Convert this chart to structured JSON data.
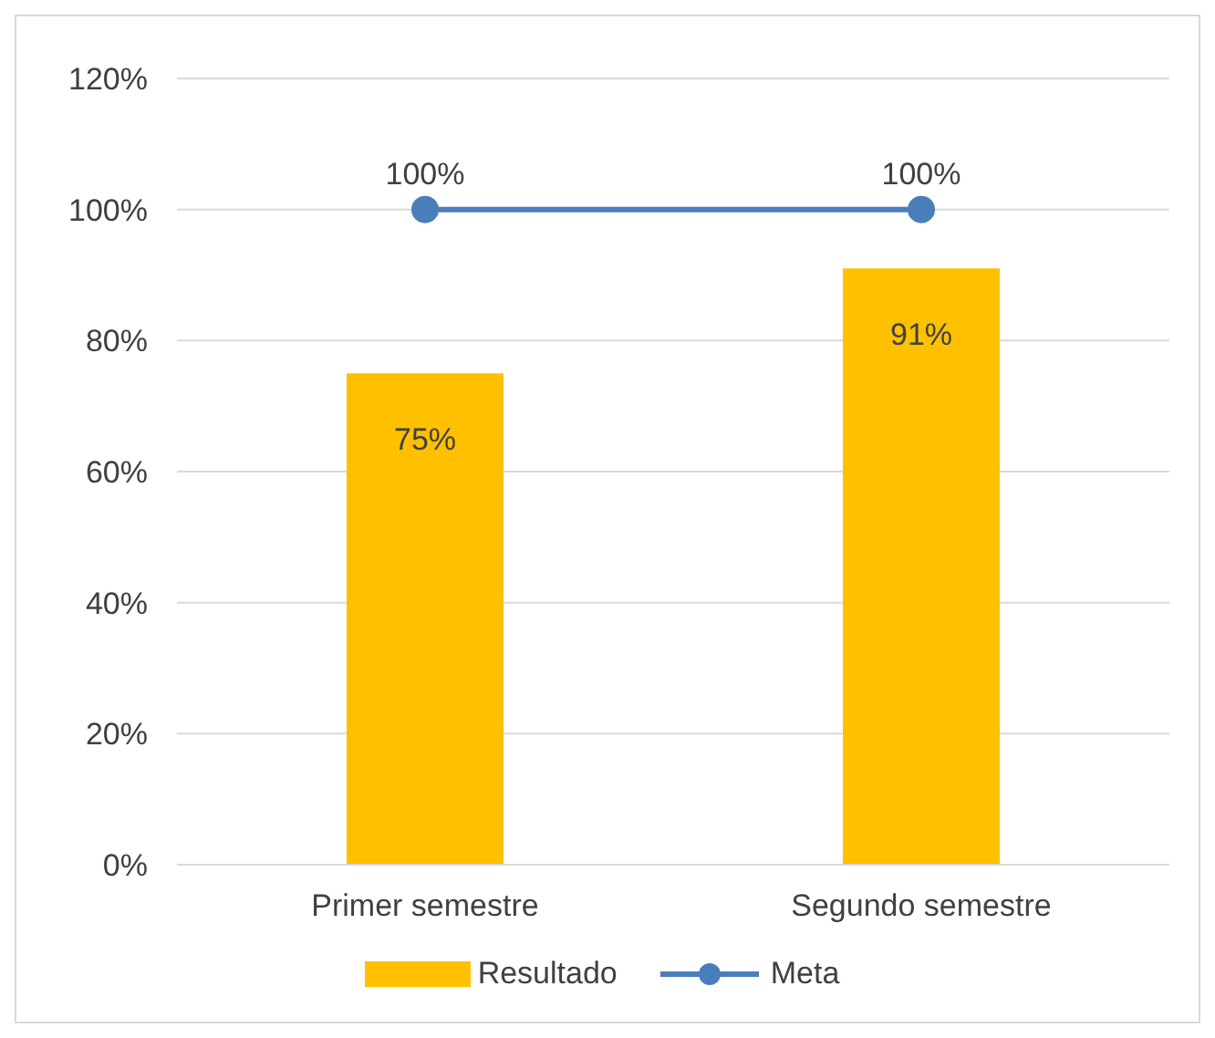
{
  "chart_data": {
    "type": "bar",
    "categories": [
      "Primer semestre",
      "Segundo semestre"
    ],
    "series": [
      {
        "name": "Resultado",
        "color": "#ffc000",
        "values": [
          75,
          91
        ],
        "value_labels": [
          "75%",
          "91%"
        ]
      },
      {
        "name": "Meta",
        "type": "line",
        "color": "#4a7ebb",
        "values": [
          100,
          100
        ],
        "value_labels": [
          "100%",
          "100%"
        ],
        "marker": "circle"
      }
    ],
    "ylim": [
      0,
      120
    ],
    "yticks": [
      {
        "value": 0,
        "label": "0%"
      },
      {
        "value": 20,
        "label": "20%"
      },
      {
        "value": 40,
        "label": "40%"
      },
      {
        "value": 60,
        "label": "60%"
      },
      {
        "value": 80,
        "label": "80%"
      },
      {
        "value": 100,
        "label": "100%"
      },
      {
        "value": 120,
        "label": "120%"
      }
    ],
    "grid": "y",
    "legend": "bottom"
  }
}
